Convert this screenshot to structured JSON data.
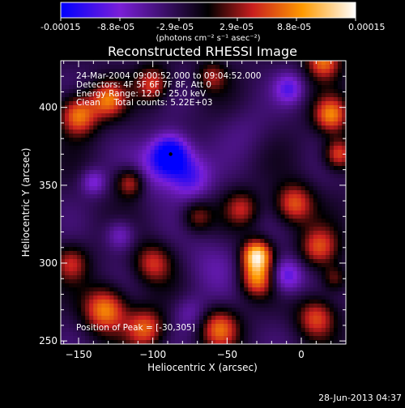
{
  "colorbar": {
    "ticks": [
      "-0.00015",
      "-8.8e-05",
      "-2.9e-05",
      "2.9e-05",
      "8.8e-05",
      "0.00015"
    ],
    "units_label": "(photons cm⁻² s⁻¹ asec⁻²)"
  },
  "chart_data": {
    "type": "heatmap",
    "title": "Reconstructed RHESSI Image",
    "xlabel": "Heliocentric X (arcsec)",
    "ylabel": "Heliocentric Y (arcsec)",
    "xlim": [
      -162,
      30
    ],
    "ylim": [
      248,
      430
    ],
    "xticks": [
      -150,
      -100,
      -50,
      0
    ],
    "yticks": [
      250,
      300,
      350,
      400
    ],
    "zlim": [
      -0.00015,
      0.00015
    ],
    "colormap": [
      "#0000ff",
      "#7a1fd8",
      "#000000",
      "#c81e1e",
      "#ff9a00",
      "#ffffff"
    ],
    "annotations": [
      "24-Mar-2004 09:00:52.000 to 09:04:52.000",
      "Detectors: 4F 5F 6F 7F 8F, Att 0",
      "Energy Range: 12.0 - 25.0 keV",
      "Clean     Total counts: 5.22E+03"
    ],
    "peak_label": "Position of Peak = [-30,305]",
    "peak": [
      -30,
      305
    ],
    "min_marker": [
      -88,
      370
    ],
    "blobs": [
      {
        "x": -88,
        "y": 370,
        "v": -0.00015,
        "s": 9
      },
      {
        "x": -75,
        "y": 355,
        "v": -9e-05,
        "s": 10
      },
      {
        "x": -100,
        "y": 360,
        "v": -6e-05,
        "s": 12
      },
      {
        "x": -10,
        "y": 292,
        "v": -0.0001,
        "s": 8
      },
      {
        "x": -8,
        "y": 412,
        "v": -8e-05,
        "s": 7
      },
      {
        "x": -122,
        "y": 318,
        "v": -7e-05,
        "s": 7
      },
      {
        "x": -140,
        "y": 352,
        "v": -7e-05,
        "s": 6
      },
      {
        "x": -75,
        "y": 268,
        "v": -5e-05,
        "s": 8
      },
      {
        "x": -60,
        "y": 300,
        "v": -4e-05,
        "s": 14
      },
      {
        "x": -38,
        "y": 385,
        "v": -3e-05,
        "s": 12
      },
      {
        "x": -30,
        "y": 305,
        "v": 0.00015,
        "s": 7
      },
      {
        "x": -30,
        "y": 290,
        "v": 0.0001,
        "s": 8
      },
      {
        "x": 12,
        "y": 310,
        "v": 8e-05,
        "s": 9
      },
      {
        "x": -5,
        "y": 338,
        "v": 9e-05,
        "s": 9
      },
      {
        "x": 20,
        "y": 395,
        "v": 0.0001,
        "s": 8
      },
      {
        "x": 25,
        "y": 370,
        "v": 9e-05,
        "s": 7
      },
      {
        "x": 15,
        "y": 430,
        "v": 0.0001,
        "s": 8
      },
      {
        "x": -150,
        "y": 395,
        "v": 0.00011,
        "s": 9
      },
      {
        "x": -130,
        "y": 405,
        "v": 9e-05,
        "s": 8
      },
      {
        "x": -132,
        "y": 270,
        "v": 0.00011,
        "s": 10
      },
      {
        "x": -105,
        "y": 258,
        "v": 9e-05,
        "s": 9
      },
      {
        "x": -55,
        "y": 258,
        "v": 9e-05,
        "s": 9
      },
      {
        "x": -100,
        "y": 300,
        "v": 7e-05,
        "s": 9
      },
      {
        "x": -115,
        "y": 352,
        "v": 8e-05,
        "s": 7
      },
      {
        "x": -100,
        "y": 415,
        "v": 8e-05,
        "s": 8
      },
      {
        "x": -155,
        "y": 300,
        "v": 6e-05,
        "s": 8
      },
      {
        "x": 10,
        "y": 265,
        "v": 8e-05,
        "s": 9
      },
      {
        "x": -40,
        "y": 335,
        "v": 6e-05,
        "s": 8
      },
      {
        "x": -60,
        "y": 420,
        "v": 5e-05,
        "s": 7
      },
      {
        "x": -70,
        "y": 330,
        "v": 5e-05,
        "s": 7
      },
      {
        "x": 22,
        "y": 290,
        "v": 5e-05,
        "s": 6
      }
    ]
  },
  "footer": {
    "date": "28-Jun-2013 04:37"
  }
}
